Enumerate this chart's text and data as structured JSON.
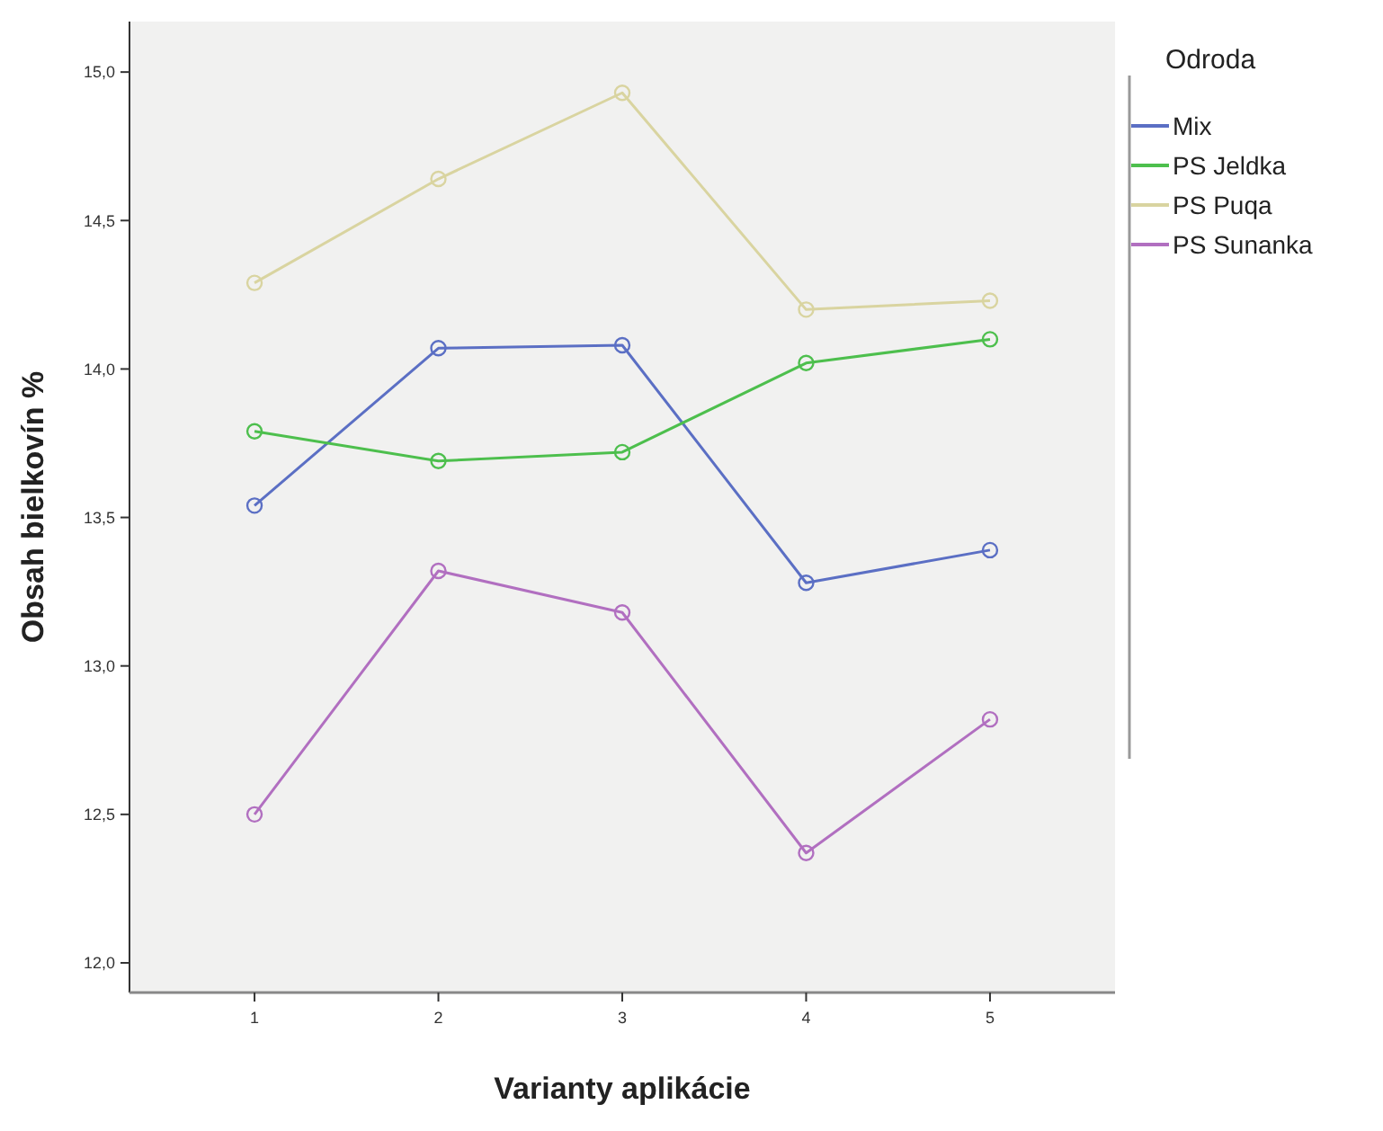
{
  "chart_data": {
    "type": "line",
    "xlabel": "Varianty aplikácie",
    "ylabel": "Obsah bielkovín %",
    "legend_title": "Odroda",
    "legend": "right",
    "marker": "circle",
    "grid": false,
    "categories": [
      "1",
      "2",
      "3",
      "4",
      "5"
    ],
    "ylim": [
      11.9,
      15.17
    ],
    "yticks": [
      {
        "value": 12,
        "label": "12,0"
      },
      {
        "value": 12.5,
        "label": "12,5"
      },
      {
        "value": 13,
        "label": "13,0"
      },
      {
        "value": 13.5,
        "label": "13,5"
      },
      {
        "value": 14,
        "label": "14,0"
      },
      {
        "value": 14.5,
        "label": "14,5"
      },
      {
        "value": 15,
        "label": "15,0"
      }
    ],
    "series": [
      {
        "name": "Mix",
        "color": "#5b6fc4",
        "values": [
          13.54,
          14.07,
          14.08,
          13.28,
          13.39
        ]
      },
      {
        "name": "PS Jeldka",
        "color": "#4dbf4d",
        "values": [
          13.79,
          13.69,
          13.72,
          14.02,
          14.1
        ]
      },
      {
        "name": "PS Puqa",
        "color": "#d9d4a0",
        "values": [
          14.29,
          14.64,
          14.93,
          14.2,
          14.23
        ]
      },
      {
        "name": "PS Sunanka",
        "color": "#b16fc0",
        "values": [
          12.5,
          13.32,
          13.18,
          12.37,
          12.82
        ]
      }
    ]
  }
}
